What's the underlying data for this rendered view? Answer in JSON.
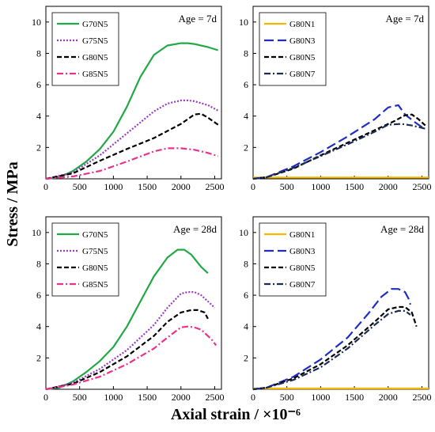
{
  "figure": {
    "ylabel": "Stress / MPa",
    "xlabel": "Axial strain / ×10⁻⁶"
  },
  "chart_data": [
    {
      "type": "line",
      "annotation": "Age = 7d",
      "xlim": [
        0,
        2600
      ],
      "ylim": [
        0,
        11
      ],
      "xticks": [
        0,
        500,
        1000,
        1500,
        2000,
        2500
      ],
      "yticks": [
        2,
        4,
        6,
        8,
        10
      ],
      "legend_position": "top-left",
      "series": [
        {
          "name": "G70N5",
          "color": "#22a846",
          "dash": "",
          "x": [
            0,
            200,
            400,
            600,
            800,
            1000,
            1200,
            1400,
            1600,
            1800,
            2000,
            2100,
            2200,
            2400,
            2550
          ],
          "y": [
            0,
            0.1,
            0.5,
            1.1,
            1.9,
            3.0,
            4.6,
            6.5,
            7.9,
            8.5,
            8.65,
            8.65,
            8.6,
            8.4,
            8.2
          ]
        },
        {
          "name": "G75N5",
          "color": "#9b3bc4",
          "dash": "2,2",
          "x": [
            0,
            400,
            800,
            1000,
            1200,
            1400,
            1600,
            1800,
            2000,
            2100,
            2200,
            2400,
            2550
          ],
          "y": [
            0,
            0.4,
            1.5,
            2.2,
            2.9,
            3.6,
            4.3,
            4.8,
            5.0,
            5.0,
            4.95,
            4.7,
            4.35
          ]
        },
        {
          "name": "G80N5",
          "color": "#000000",
          "dash": "6,3",
          "x": [
            0,
            400,
            800,
            1200,
            1600,
            2000,
            2200,
            2300,
            2400,
            2500,
            2550
          ],
          "y": [
            0,
            0.35,
            1.15,
            1.9,
            2.6,
            3.5,
            4.1,
            4.15,
            3.9,
            3.6,
            3.45
          ]
        },
        {
          "name": "G85N5",
          "color": "#e8338a",
          "dash": "8,3,2,3",
          "x": [
            0,
            400,
            800,
            1200,
            1600,
            1800,
            2000,
            2200,
            2400,
            2550
          ],
          "y": [
            0,
            0.15,
            0.5,
            1.1,
            1.75,
            1.95,
            1.95,
            1.85,
            1.65,
            1.45
          ]
        }
      ]
    },
    {
      "type": "line",
      "annotation": "Age = 7d",
      "xlim": [
        0,
        2600
      ],
      "ylim": [
        0,
        11
      ],
      "xticks": [
        0,
        500,
        1000,
        1500,
        2000,
        2500
      ],
      "yticks": [
        2,
        4,
        6,
        8,
        10
      ],
      "legend_position": "top-left",
      "series": [
        {
          "name": "G80N1",
          "color": "#f2b705",
          "dash": "",
          "x": [
            0,
            2600
          ],
          "y": [
            0.08,
            0.08
          ]
        },
        {
          "name": "G80N3",
          "color": "#1f2fc2",
          "dash": "12,5",
          "x": [
            0,
            200,
            600,
            1000,
            1400,
            1800,
            2000,
            2150,
            2250,
            2400,
            2550
          ],
          "y": [
            0,
            0.1,
            0.8,
            1.7,
            2.7,
            3.8,
            4.55,
            4.7,
            4.1,
            3.6,
            3.15
          ]
        },
        {
          "name": "G80N5",
          "color": "#000000",
          "dash": "6,3",
          "x": [
            0,
            200,
            600,
            1000,
            1400,
            1800,
            2100,
            2250,
            2350,
            2450,
            2550
          ],
          "y": [
            0,
            0.1,
            0.65,
            1.5,
            2.3,
            3.1,
            3.7,
            4.05,
            4.1,
            3.8,
            3.4
          ]
        },
        {
          "name": "G80N7",
          "color": "#1a2e55",
          "dash": "8,3,2,3",
          "x": [
            0,
            200,
            600,
            1000,
            1400,
            1800,
            2000,
            2200,
            2350,
            2450,
            2550
          ],
          "y": [
            0,
            0.1,
            0.7,
            1.45,
            2.2,
            3.0,
            3.45,
            3.5,
            3.4,
            3.3,
            3.2
          ]
        }
      ]
    },
    {
      "type": "line",
      "annotation": "Age = 28d",
      "xlim": [
        0,
        2600
      ],
      "ylim": [
        0,
        11
      ],
      "xticks": [
        0,
        500,
        1000,
        1500,
        2000,
        2500
      ],
      "yticks": [
        2,
        4,
        6,
        8,
        10
      ],
      "legend_position": "top-left",
      "series": [
        {
          "name": "G70N5",
          "color": "#22a846",
          "dash": "",
          "x": [
            0,
            200,
            400,
            600,
            800,
            1000,
            1200,
            1400,
            1600,
            1800,
            1950,
            2050,
            2150,
            2300,
            2400
          ],
          "y": [
            0,
            0.1,
            0.5,
            1.1,
            1.8,
            2.7,
            4.0,
            5.6,
            7.2,
            8.4,
            8.9,
            8.9,
            8.6,
            7.8,
            7.4
          ]
        },
        {
          "name": "G75N5",
          "color": "#9b3bc4",
          "dash": "2,2",
          "x": [
            0,
            400,
            800,
            1200,
            1600,
            1800,
            2000,
            2100,
            2200,
            2300,
            2400,
            2500
          ],
          "y": [
            0,
            0.4,
            1.3,
            2.5,
            4.1,
            5.2,
            6.1,
            6.2,
            6.2,
            6.0,
            5.6,
            5.2
          ]
        },
        {
          "name": "G80N5",
          "color": "#000000",
          "dash": "6,3",
          "x": [
            0,
            400,
            800,
            1200,
            1600,
            1800,
            2000,
            2150,
            2250,
            2350,
            2400
          ],
          "y": [
            0,
            0.35,
            1.1,
            2.1,
            3.4,
            4.3,
            4.9,
            5.05,
            5.05,
            4.9,
            4.5
          ]
        },
        {
          "name": "G85N5",
          "color": "#e8338a",
          "dash": "8,3,2,3",
          "x": [
            0,
            400,
            800,
            1200,
            1600,
            1800,
            2000,
            2100,
            2200,
            2300,
            2450,
            2520
          ],
          "y": [
            0,
            0.3,
            0.8,
            1.6,
            2.6,
            3.3,
            3.95,
            4.0,
            3.95,
            3.8,
            3.2,
            2.8
          ]
        }
      ]
    },
    {
      "type": "line",
      "annotation": "Age = 28d",
      "xlim": [
        0,
        2600
      ],
      "ylim": [
        0,
        11
      ],
      "xticks": [
        0,
        500,
        1000,
        1500,
        2000,
        2500
      ],
      "yticks": [
        2,
        4,
        6,
        8,
        10
      ],
      "legend_position": "top-left",
      "series": [
        {
          "name": "G80N1",
          "color": "#f2b705",
          "dash": "",
          "x": [
            0,
            2600
          ],
          "y": [
            0.05,
            0.05
          ]
        },
        {
          "name": "G80N3",
          "color": "#1f2fc2",
          "dash": "12,5",
          "x": [
            0,
            200,
            600,
            1000,
            1400,
            1700,
            1900,
            2050,
            2150,
            2250,
            2300,
            2330
          ],
          "y": [
            0,
            0.1,
            0.8,
            1.9,
            3.3,
            4.8,
            5.9,
            6.4,
            6.4,
            6.2,
            5.8,
            5.4
          ]
        },
        {
          "name": "G80N5",
          "color": "#000000",
          "dash": "6,3",
          "x": [
            0,
            200,
            600,
            1000,
            1400,
            1800,
            2000,
            2150,
            2250,
            2350,
            2420
          ],
          "y": [
            0,
            0.1,
            0.7,
            1.6,
            2.8,
            4.3,
            5.1,
            5.25,
            5.25,
            4.9,
            4.0
          ]
        },
        {
          "name": "G80N7",
          "color": "#1a2e55",
          "dash": "8,3,2,3",
          "x": [
            0,
            200,
            600,
            1000,
            1400,
            1800,
            2000,
            2150,
            2250,
            2330
          ],
          "y": [
            0,
            0.1,
            0.6,
            1.4,
            2.6,
            4.1,
            4.8,
            5.0,
            5.0,
            4.75
          ]
        }
      ]
    }
  ]
}
